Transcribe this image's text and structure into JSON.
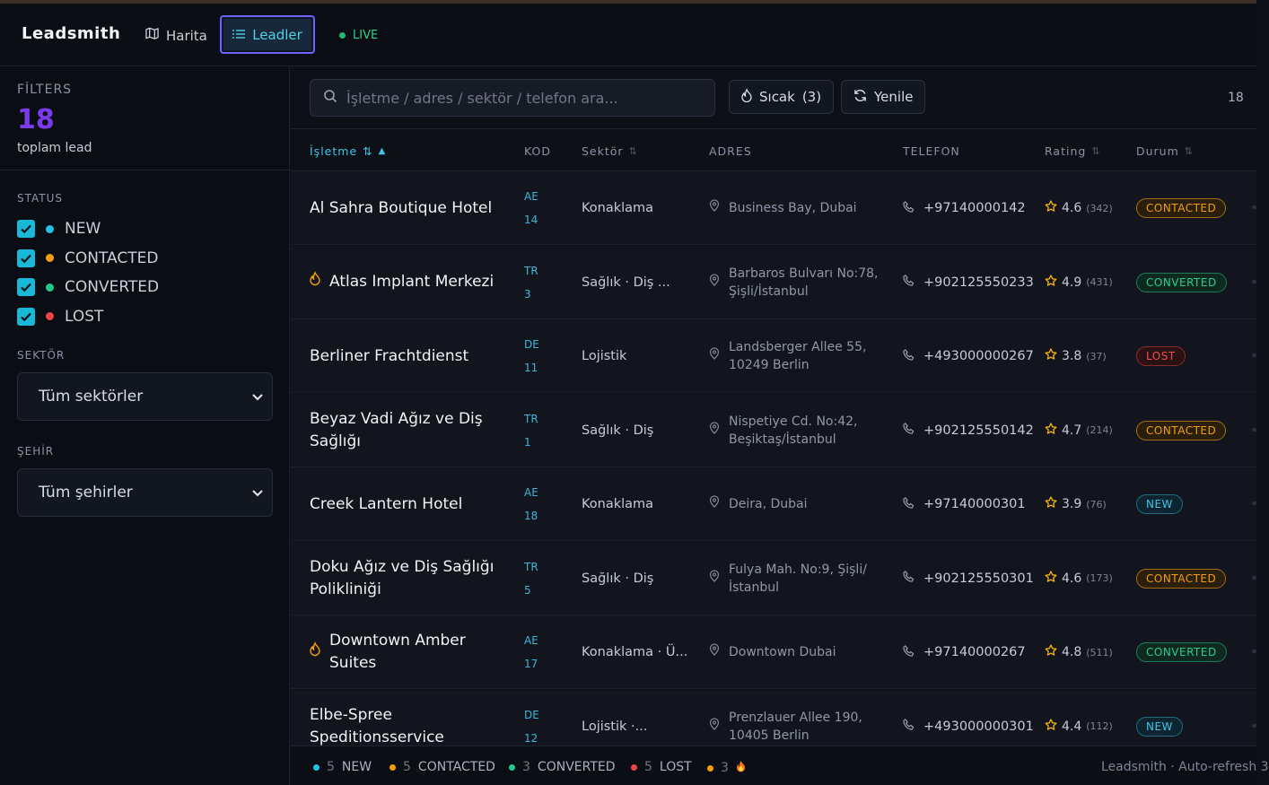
{
  "header": {
    "brand": "Leadsmith",
    "nav_map": "Harita",
    "nav_leads": "Leadler",
    "live": "LIVE"
  },
  "sidebar": {
    "filters_label": "FİLTERS",
    "total": "18",
    "total_label": "toplam lead",
    "status_title": "STATUS",
    "statuses": [
      {
        "label": "NEW",
        "color": "#22c3e6"
      },
      {
        "label": "CONTACTED",
        "color": "#f59e0b"
      },
      {
        "label": "CONVERTED",
        "color": "#22c98a"
      },
      {
        "label": "LOST",
        "color": "#ef4444"
      }
    ],
    "sector_title": "SEKTÖR",
    "sector_value": "Tüm sektörler",
    "city_title": "ŞEHİR",
    "city_value": "Tüm şehirler"
  },
  "toolbar": {
    "search_placeholder": "İşletme / adres / sektör / telefon ara...",
    "hot_label": "Sıcak",
    "hot_count": "(3)",
    "refresh_label": "Yenile",
    "count": "18"
  },
  "table": {
    "columns": {
      "business": "İşletme",
      "kod": "KOD",
      "sector": "Sektör",
      "address": "ADRES",
      "phone": "TELEFON",
      "rating": "Rating",
      "status": "Durum"
    },
    "rows": [
      {
        "name": "Al Sahra Boutique Hotel",
        "hot": false,
        "cc": "AE",
        "num": "14",
        "sector": "Konaklama",
        "address": "Business Bay, Dubai",
        "phone": "+97140000142",
        "rating": "4.6",
        "reviews": "(342)",
        "status": "CONTACTED"
      },
      {
        "name": "Atlas Implant Merkezi",
        "hot": true,
        "cc": "TR",
        "num": "3",
        "sector": "Sağlık · Diş ...",
        "address": "Barbaros Bulvarı No:78, Şişli/İstanbul",
        "phone": "+902125550233",
        "rating": "4.9",
        "reviews": "(431)",
        "status": "CONVERTED"
      },
      {
        "name": "Berliner Frachtdienst",
        "hot": false,
        "cc": "DE",
        "num": "11",
        "sector": "Lojistik",
        "address": "Landsberger Allee 55, 10249 Berlin",
        "phone": "+493000000267",
        "rating": "3.8",
        "reviews": "(37)",
        "status": "LOST"
      },
      {
        "name": "Beyaz Vadi Ağız ve Diş Sağlığı",
        "hot": false,
        "cc": "TR",
        "num": "1",
        "sector": "Sağlık · Diş",
        "address": "Nispetiye Cd. No:42, Beşiktaş/İstanbul",
        "phone": "+902125550142",
        "rating": "4.7",
        "reviews": "(214)",
        "status": "CONTACTED"
      },
      {
        "name": "Creek Lantern Hotel",
        "hot": false,
        "cc": "AE",
        "num": "18",
        "sector": "Konaklama",
        "address": "Deira, Dubai",
        "phone": "+97140000301",
        "rating": "3.9",
        "reviews": "(76)",
        "status": "NEW"
      },
      {
        "name": "Doku Ağız ve Diş Sağlığı Polikliniği",
        "hot": false,
        "cc": "TR",
        "num": "5",
        "sector": "Sağlık · Diş",
        "address": "Fulya Mah. No:9, Şişli/ İstanbul",
        "phone": "+902125550301",
        "rating": "4.6",
        "reviews": "(173)",
        "status": "CONTACTED"
      },
      {
        "name": "Downtown Amber Suites",
        "hot": true,
        "cc": "AE",
        "num": "17",
        "sector": "Konaklama · Ü...",
        "address": "Downtown Dubai",
        "phone": "+97140000267",
        "rating": "4.8",
        "reviews": "(511)",
        "status": "CONVERTED"
      },
      {
        "name": "Elbe-Spree Speditionsservice",
        "hot": false,
        "cc": "DE",
        "num": "12",
        "sector": "Lojistik ·...",
        "address": "Prenzlauer Allee 190, 10405 Berlin",
        "phone": "+493000000301",
        "rating": "4.4",
        "reviews": "(112)",
        "status": "NEW"
      }
    ]
  },
  "footer": {
    "stats": [
      {
        "count": "5",
        "label": "NEW",
        "color": "#22c3e6"
      },
      {
        "count": "5",
        "label": "CONTACTED",
        "color": "#f59e0b"
      },
      {
        "count": "3",
        "label": "CONVERTED",
        "color": "#22c98a"
      },
      {
        "count": "5",
        "label": "LOST",
        "color": "#ef4444"
      },
      {
        "count": "3",
        "label": "",
        "color": "#f59e0b"
      }
    ],
    "brand": "Leadsmith · Auto-refresh 3"
  }
}
